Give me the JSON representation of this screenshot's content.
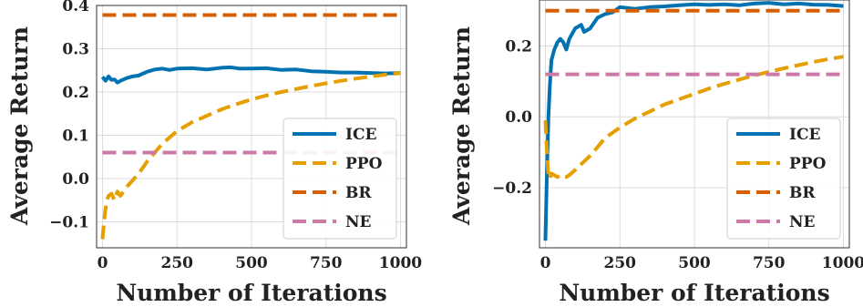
{
  "chart_data": [
    {
      "type": "line",
      "xlabel": "Number of Iterations",
      "ylabel": "Average Return",
      "xlim": [
        -20,
        1020
      ],
      "ylim": [
        -0.16,
        0.4
      ],
      "xticks": [
        0,
        250,
        500,
        750,
        1000
      ],
      "xtick_labels": [
        "0",
        "250",
        "500",
        "750",
        "1000"
      ],
      "yticks": [
        -0.1,
        0.0,
        0.1,
        0.2,
        0.3,
        0.4
      ],
      "ytick_labels": [
        "−0.1",
        "0.0",
        "0.1",
        "0.2",
        "0.3",
        "0.4"
      ],
      "grid": true,
      "legend_position": "lower-right",
      "series": [
        {
          "name": "ICE",
          "color": "#0072B2",
          "dash": "solid",
          "x": [
            0,
            10,
            20,
            30,
            40,
            50,
            60,
            80,
            100,
            120,
            150,
            175,
            200,
            225,
            250,
            300,
            350,
            400,
            430,
            460,
            500,
            550,
            600,
            650,
            700,
            750,
            800,
            850,
            900,
            950,
            1000
          ],
          "y": [
            0.235,
            0.226,
            0.236,
            0.228,
            0.229,
            0.222,
            0.226,
            0.232,
            0.236,
            0.238,
            0.247,
            0.252,
            0.254,
            0.251,
            0.254,
            0.255,
            0.252,
            0.256,
            0.257,
            0.254,
            0.254,
            0.255,
            0.251,
            0.252,
            0.248,
            0.247,
            0.245,
            0.245,
            0.244,
            0.243,
            0.244
          ]
        },
        {
          "name": "PPO",
          "color": "#E69F00",
          "dash": "dashed",
          "x": [
            0,
            5,
            10,
            15,
            20,
            30,
            40,
            50,
            60,
            80,
            100,
            125,
            150,
            175,
            200,
            250,
            300,
            350,
            400,
            450,
            500,
            550,
            600,
            650,
            700,
            750,
            800,
            850,
            900,
            950,
            1000
          ],
          "y": [
            -0.14,
            -0.1,
            -0.07,
            -0.05,
            -0.04,
            -0.035,
            -0.05,
            -0.03,
            -0.04,
            -0.02,
            -0.005,
            0.015,
            0.04,
            0.06,
            0.08,
            0.11,
            0.13,
            0.145,
            0.16,
            0.172,
            0.183,
            0.192,
            0.2,
            0.207,
            0.214,
            0.22,
            0.226,
            0.231,
            0.236,
            0.24,
            0.244
          ]
        },
        {
          "name": "BR",
          "color": "#D55E00",
          "dash": "dashed",
          "x": [
            0,
            1000
          ],
          "y": [
            0.378,
            0.378
          ]
        },
        {
          "name": "NE",
          "color": "#CC79A7",
          "dash": "dashed",
          "x": [
            0,
            1000
          ],
          "y": [
            0.06,
            0.06
          ]
        }
      ]
    },
    {
      "type": "line",
      "xlabel": "Number of Iterations",
      "ylabel": "Average Return",
      "xlim": [
        -20,
        1020
      ],
      "ylim": [
        -0.37,
        0.33
      ],
      "xticks": [
        0,
        250,
        500,
        750,
        1000
      ],
      "xtick_labels": [
        "0",
        "250",
        "500",
        "750",
        "1000"
      ],
      "yticks": [
        -0.2,
        0.0,
        0.2
      ],
      "ytick_labels": [
        "−0.2",
        "0.0",
        "0.2"
      ],
      "grid": true,
      "legend_position": "lower-right",
      "series": [
        {
          "name": "ICE",
          "color": "#0072B2",
          "dash": "solid",
          "x": [
            0,
            5,
            10,
            15,
            20,
            30,
            40,
            50,
            60,
            70,
            80,
            100,
            120,
            130,
            150,
            175,
            200,
            225,
            250,
            300,
            350,
            400,
            450,
            500,
            550,
            600,
            650,
            700,
            750,
            800,
            850,
            900,
            950,
            1000
          ],
          "y": [
            -0.35,
            -0.15,
            0.0,
            0.09,
            0.16,
            0.19,
            0.21,
            0.22,
            0.21,
            0.19,
            0.22,
            0.25,
            0.26,
            0.24,
            0.25,
            0.28,
            0.29,
            0.295,
            0.31,
            0.305,
            0.31,
            0.312,
            0.315,
            0.318,
            0.316,
            0.318,
            0.315,
            0.32,
            0.322,
            0.318,
            0.32,
            0.317,
            0.316,
            0.313
          ]
        },
        {
          "name": "PPO",
          "color": "#E69F00",
          "dash": "dashed",
          "x": [
            0,
            5,
            10,
            15,
            20,
            30,
            40,
            50,
            60,
            70,
            80,
            100,
            125,
            150,
            175,
            200,
            250,
            300,
            350,
            400,
            450,
            500,
            550,
            600,
            650,
            700,
            750,
            800,
            850,
            900,
            950,
            1000
          ],
          "y": [
            -0.01,
            -0.1,
            -0.17,
            -0.175,
            -0.16,
            -0.165,
            -0.17,
            -0.165,
            -0.17,
            -0.17,
            -0.165,
            -0.15,
            -0.13,
            -0.11,
            -0.085,
            -0.06,
            -0.03,
            -0.005,
            0.015,
            0.035,
            0.05,
            0.065,
            0.08,
            0.093,
            0.105,
            0.117,
            0.127,
            0.137,
            0.146,
            0.155,
            0.163,
            0.17
          ]
        },
        {
          "name": "BR",
          "color": "#D55E00",
          "dash": "dashed",
          "x": [
            0,
            1000
          ],
          "y": [
            0.3,
            0.3
          ]
        },
        {
          "name": "NE",
          "color": "#CC79A7",
          "dash": "dashed",
          "x": [
            0,
            1000
          ],
          "y": [
            0.12,
            0.12
          ]
        }
      ]
    }
  ]
}
